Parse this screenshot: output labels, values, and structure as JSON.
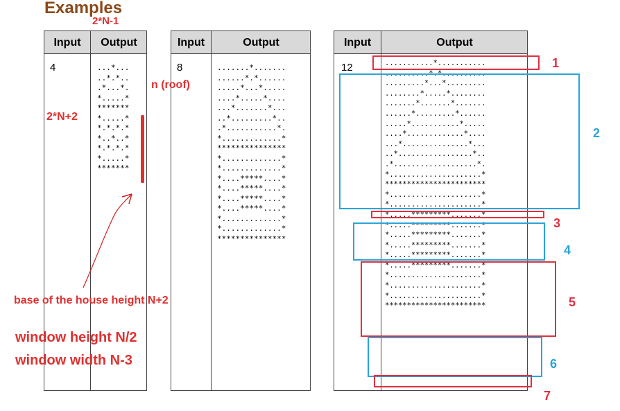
{
  "page": {
    "title": "Examples"
  },
  "tables": [
    {
      "header": {
        "input": "Input",
        "output": "Output"
      },
      "input": "4",
      "output": "...*...\n..*.*..\n.*...*.\n*.....*\n*******\n*.....*\n*.*.*.*\n*..*..*\n*.*.*.*\n*.....*\n*******"
    },
    {
      "header": {
        "input": "Input",
        "output": "Output"
      },
      "input": "8",
      "output": ".......*.......\n......*.*......\n.....*...*.....\n....*.....*....\n...*.......*...\n..*.........*..\n.*...........*.\n*.............*\n***************\n*.............*\n*.............*\n*....*****....*\n*....*****....*\n*....*****....*\n*....*****....*\n*.............*\n*.............*\n***************"
    },
    {
      "header": {
        "input": "Input",
        "output": "Output"
      },
      "input": "12",
      "output": "...........*...........\n..........*.*..........\n.........*...*.........\n........*.....*........\n.......*.......*.......\n......*.........*......\n.....*...........*.....\n....*.............*....\n...*...............*...\n..*.................*..\n.*...................*.\n*.....................*\n***********************\n*.....................*\n*.....................*\n*.....*********.......*\n*.....*********.......*\n*.....*********.......*\n*.....*********.......*\n*.....*********.......*\n*.....*********.......*\n*.....................*\n*.....................*\n*.....................*\n***********************"
    }
  ],
  "annotations": {
    "top_formula": "2*N-1",
    "roof": "n (roof)",
    "side_formula": "2*N+2",
    "base_height": "base of the house height  N+2",
    "window_height": "window height   N/2",
    "window_width": "window width    N-3"
  },
  "section_numbers": [
    "1",
    "2",
    "3",
    "4",
    "5",
    "6",
    "7"
  ],
  "colors": {
    "annotation_red": "#e03030",
    "box_red": "#e03040",
    "box_blue": "#2aa4d8",
    "title_brown": "#8b4a1a",
    "header_gray": "#d9d9d9"
  }
}
